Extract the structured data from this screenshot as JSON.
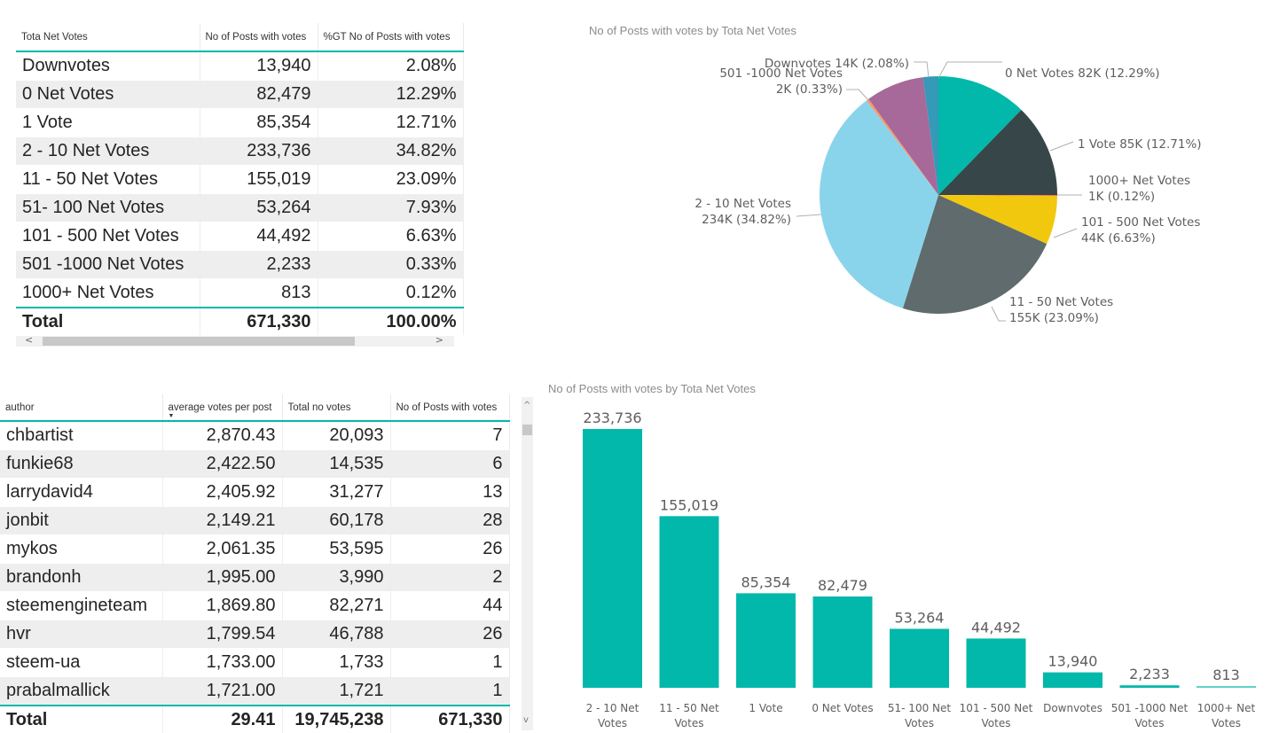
{
  "table_votes": {
    "columns": [
      "Tota Net Votes",
      "No of Posts with votes",
      "%GT No of Posts with votes"
    ],
    "rows": [
      [
        "Downvotes",
        "13,940",
        "2.08%"
      ],
      [
        "0 Net Votes",
        "82,479",
        "12.29%"
      ],
      [
        "1 Vote",
        "85,354",
        "12.71%"
      ],
      [
        "2 - 10  Net Votes",
        "233,736",
        "34.82%"
      ],
      [
        "11 - 50 Net Votes",
        "155,019",
        "23.09%"
      ],
      [
        "51- 100 Net Votes",
        "53,264",
        "7.93%"
      ],
      [
        "101 - 500 Net Votes",
        "44,492",
        "6.63%"
      ],
      [
        "501 -1000 Net Votes",
        "2,233",
        "0.33%"
      ],
      [
        "1000+  Net Votes",
        "813",
        "0.12%"
      ]
    ],
    "total": [
      "Total",
      "671,330",
      "100.00%"
    ],
    "scroll_left": "<",
    "scroll_right": ">"
  },
  "table_authors": {
    "columns": [
      "author",
      "average votes per post",
      "Total no votes",
      "No of Posts with votes"
    ],
    "sort_indicator": "▼",
    "rows": [
      [
        "chbartist",
        "2,870.43",
        "20,093",
        "7"
      ],
      [
        "funkie68",
        "2,422.50",
        "14,535",
        "6"
      ],
      [
        "larrydavid4",
        "2,405.92",
        "31,277",
        "13"
      ],
      [
        "jonbit",
        "2,149.21",
        "60,178",
        "28"
      ],
      [
        "mykos",
        "2,061.35",
        "53,595",
        "26"
      ],
      [
        "brandonh",
        "1,995.00",
        "3,990",
        "2"
      ],
      [
        "steemengineteam",
        "1,869.80",
        "82,271",
        "44"
      ],
      [
        "hvr",
        "1,799.54",
        "46,788",
        "26"
      ],
      [
        "steem-ua",
        "1,733.00",
        "1,733",
        "1"
      ],
      [
        "prabalmallick",
        "1,721.00",
        "1,721",
        "1"
      ]
    ],
    "total": [
      "Total",
      "29.41",
      "19,745,238",
      "671,330"
    ],
    "scroll_up": "^",
    "scroll_down": "v"
  },
  "chart_data": [
    {
      "type": "pie",
      "title": "No of Posts with votes by Tota Net Votes",
      "slices": [
        {
          "label": "0 Net Votes",
          "value": 82479,
          "display": "82K (12.29%)",
          "color": "#01b8aa"
        },
        {
          "label": "1 Vote",
          "value": 85354,
          "display": "85K (12.71%)",
          "color": "#374649"
        },
        {
          "label": "1000+ Net Votes",
          "value": 813,
          "display": "1K (0.12%)",
          "color": "#fd625e"
        },
        {
          "label": "101 - 500 Net Votes",
          "value": 44492,
          "display": "44K (6.63%)",
          "color": "#f2c80f"
        },
        {
          "label": "11 - 50 Net Votes",
          "value": 155019,
          "display": "155K (23.09%)",
          "color": "#5f6b6d"
        },
        {
          "label": "2 - 10 Net Votes",
          "value": 233736,
          "display": "234K (34.82%)",
          "color": "#8ad4eb"
        },
        {
          "label": "501 -1000 Net Votes",
          "value": 2233,
          "display": "2K (0.33%)",
          "color": "#fe9666"
        },
        {
          "label": "51- 100 Net Votes",
          "value": 53264,
          "display": "",
          "color": "#a66999"
        },
        {
          "label": "Downvotes",
          "value": 13940,
          "display": "14K (2.08%)",
          "color": "#3599b8"
        }
      ],
      "legend": "none (data labels)"
    },
    {
      "type": "bar",
      "title": "No of Posts with votes by Tota Net Votes",
      "categories": [
        "2 - 10 Net Votes",
        "11 - 50 Net Votes",
        "1 Vote",
        "0 Net Votes",
        "51- 100 Net Votes",
        "101 - 500 Net Votes",
        "Downvotes",
        "501 -1000 Net Votes",
        "1000+ Net Votes"
      ],
      "category_lines": [
        [
          "2 - 10 Net",
          "Votes"
        ],
        [
          "11 - 50 Net",
          "Votes"
        ],
        [
          "1 Vote"
        ],
        [
          "0 Net Votes"
        ],
        [
          "51- 100 Net",
          "Votes"
        ],
        [
          "101 - 500 Net",
          "Votes"
        ],
        [
          "Downvotes"
        ],
        [
          "501 -1000 Net",
          "Votes"
        ],
        [
          "1000+ Net",
          "Votes"
        ]
      ],
      "values": [
        233736,
        155019,
        85354,
        82479,
        53264,
        44492,
        13940,
        2233,
        813
      ],
      "value_labels": [
        "233,736",
        "155,019",
        "85,354",
        "82,479",
        "53,264",
        "44,492",
        "13,940",
        "2,233",
        "813"
      ],
      "color": "#01b8aa",
      "highlight_colors": {
        "7": "#01b8aa",
        "8": "#5fd3c9"
      },
      "xlabel": "",
      "ylabel": "",
      "ylim": [
        0,
        233736
      ],
      "grid": false
    }
  ]
}
